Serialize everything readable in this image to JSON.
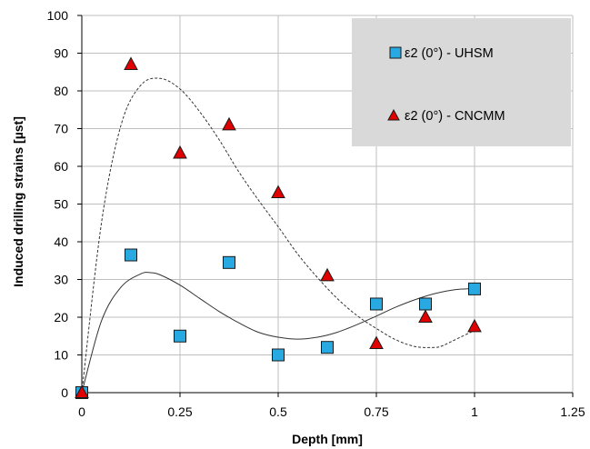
{
  "chart_data": {
    "type": "scatter",
    "xlabel": "Depth [mm]",
    "ylabel": "Induced drilling strains [µst]",
    "xlim": [
      0,
      1.25
    ],
    "ylim": [
      0,
      100
    ],
    "x_ticks": [
      "0",
      "0.25",
      "0.5",
      "0.75",
      "1",
      "1.25"
    ],
    "y_ticks": [
      "0",
      "10",
      "20",
      "30",
      "40",
      "50",
      "60",
      "70",
      "80",
      "90",
      "100"
    ],
    "grid": true,
    "legend_position": "top-right",
    "series": [
      {
        "name": "ε2 (0°) - UHSM",
        "marker": "square",
        "color": "#29a9e1",
        "x": [
          0,
          0.125,
          0.25,
          0.375,
          0.5,
          0.625,
          0.75,
          0.875,
          1
        ],
        "y": [
          0,
          36.5,
          15,
          34.5,
          10,
          12,
          23.5,
          23.5,
          27.5
        ],
        "trendline": {
          "style": "solid",
          "x": [
            0,
            0.05,
            0.1,
            0.15,
            0.175,
            0.2,
            0.25,
            0.3,
            0.35,
            0.4,
            0.45,
            0.5,
            0.55,
            0.6,
            0.65,
            0.7,
            0.75,
            0.8,
            0.85,
            0.9,
            0.95,
            1
          ],
          "y": [
            0,
            19,
            28,
            31.5,
            31.8,
            31.2,
            28.5,
            25,
            21.5,
            18.5,
            16,
            14.7,
            14.2,
            14.7,
            16,
            18,
            20.3,
            22.7,
            24.7,
            26.3,
            27.3,
            27.6
          ]
        }
      },
      {
        "name": "ε2 (0°) - CNCMM",
        "marker": "triangle",
        "color": "#e00000",
        "x": [
          0,
          0.125,
          0.25,
          0.375,
          0.5,
          0.625,
          0.75,
          0.875,
          1
        ],
        "y": [
          0,
          87,
          63.5,
          71,
          53,
          31,
          13,
          20,
          17.5
        ],
        "trendline": {
          "style": "dashed",
          "x": [
            0,
            0.05,
            0.1,
            0.15,
            0.2,
            0.25,
            0.3,
            0.35,
            0.4,
            0.45,
            0.5,
            0.55,
            0.6,
            0.65,
            0.7,
            0.75,
            0.8,
            0.85,
            0.9,
            0.92,
            0.95,
            1
          ],
          "y": [
            0,
            45,
            71,
            81.5,
            83.3,
            80.5,
            74.5,
            67,
            58.5,
            51,
            44,
            36.7,
            30.5,
            25,
            20.5,
            17,
            14,
            12.2,
            12,
            12.5,
            14,
            16.5
          ]
        }
      }
    ]
  }
}
